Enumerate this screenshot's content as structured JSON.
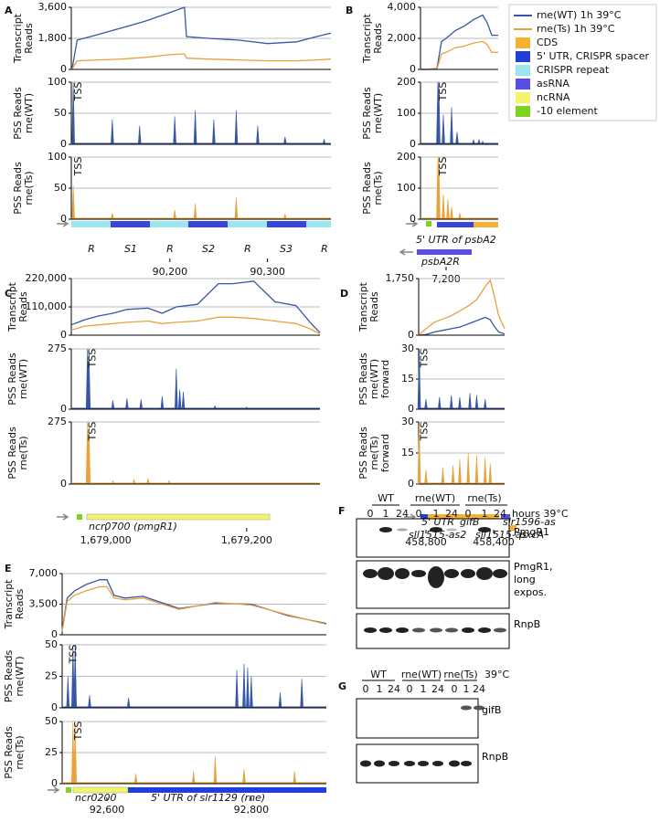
{
  "legend": {
    "items": [
      {
        "label": "rne(WT) 1h 39°C",
        "color": "#3656a8",
        "kind": "line"
      },
      {
        "label": "rne(Ts) 1h 39°C",
        "color": "#e9a13b",
        "kind": "line"
      },
      {
        "label": "CDS",
        "color": "#f3b331",
        "kind": "box"
      },
      {
        "label": "5' UTR, CRISPR spacer",
        "color": "#1f3fd8",
        "kind": "box"
      },
      {
        "label": "CRISPR repeat",
        "color": "#9ee6ef",
        "kind": "box"
      },
      {
        "label": "asRNA",
        "color": "#5a4de6",
        "kind": "box"
      },
      {
        "label": "ncRNA",
        "color": "#f4f46a",
        "kind": "box"
      },
      {
        "label": "-10 element",
        "color": "#7ed321",
        "kind": "box"
      }
    ]
  },
  "panels": [
    {
      "label": "A",
      "xlim": [
        90099,
        90365
      ],
      "xticks": [
        {
          "value": 90200,
          "label": "90,200"
        },
        {
          "value": 90300,
          "label": "90,300"
        }
      ],
      "track_labels": [
        "R",
        "S1",
        "R",
        "S2",
        "R",
        "S3",
        "R"
      ],
      "transcript": {
        "ylabel": [
          "Transcript",
          "Reads"
        ],
        "ylim": [
          0,
          3600
        ],
        "yticks": [
          0,
          {
            "value": 1800,
            "label": "1,800"
          },
          {
            "value": 3600,
            "label": "3,600"
          }
        ],
        "x": [
          90100,
          90105,
          90125,
          90150,
          90175,
          90200,
          90215,
          90217,
          90240,
          90270,
          90300,
          90330,
          90350,
          90365
        ],
        "series": [
          {
            "color": "#3656a8",
            "values": [
              100,
              1700,
              2000,
              2400,
              2800,
              3300,
              3600,
              1900,
              1800,
              1700,
              1500,
              1600,
              1900,
              2100
            ]
          },
          {
            "color": "#e9a13b",
            "values": [
              50,
              500,
              550,
              600,
              700,
              850,
              900,
              650,
              600,
              550,
              500,
              500,
              550,
              600
            ]
          }
        ]
      },
      "pss_wt": {
        "ylabel": [
          "PSS Reads",
          "rne(WT)"
        ],
        "ylim": [
          0,
          100
        ],
        "yticks": [
          0,
          50,
          100
        ],
        "annotation": "TSS",
        "color": "#3656a8",
        "x": [
          90101,
          90141,
          90169,
          90205,
          90226,
          90245,
          90268,
          90290,
          90318,
          90358
        ],
        "values": [
          100,
          40,
          30,
          45,
          55,
          40,
          55,
          30,
          12,
          8
        ]
      },
      "pss_ts": {
        "ylabel": [
          "PSS Reads",
          "rne(Ts)"
        ],
        "ylim": [
          0,
          100
        ],
        "yticks": [
          0,
          50,
          100
        ],
        "annotation": "TSS",
        "color": "#e9a13b",
        "x": [
          90101,
          90141,
          90205,
          90226,
          90268,
          90318
        ],
        "values": [
          55,
          10,
          15,
          25,
          35,
          8
        ]
      }
    },
    {
      "label": "B",
      "xlim": [
        7172,
        7257
      ],
      "xticks": [
        {
          "value": 7200,
          "label": "7,200"
        }
      ],
      "track_labels": [
        "5' UTR of psbA2",
        "psbA2R"
      ],
      "transcript": {
        "ylabel": [
          "Transcript",
          "Reads"
        ],
        "ylim": [
          0,
          4000
        ],
        "yticks": [
          0,
          {
            "value": 2000,
            "label": "2,000"
          },
          {
            "value": 4000,
            "label": "4,000"
          }
        ],
        "x": [
          7172,
          7180,
          7190,
          7195,
          7200,
          7210,
          7220,
          7230,
          7240,
          7245,
          7250,
          7257
        ],
        "series": [
          {
            "color": "#3656a8",
            "values": [
              0,
              0,
              50,
              1800,
              2000,
              2500,
              2800,
              3200,
              3500,
              3000,
              2200,
              2200
            ]
          },
          {
            "color": "#e9a13b",
            "values": [
              0,
              0,
              20,
              1000,
              1100,
              1400,
              1500,
              1700,
              1800,
              1600,
              1100,
              1100
            ]
          }
        ]
      },
      "pss_wt": {
        "ylabel": [
          "PSS Reads",
          "rne(WT)"
        ],
        "ylim": [
          0,
          200
        ],
        "yticks": [
          0,
          100,
          200
        ],
        "annotation": "TSS",
        "color": "#3656a8",
        "x": [
          7191,
          7192,
          7197,
          7206,
          7212,
          7230,
          7236,
          7240
        ],
        "values": [
          200,
          200,
          95,
          120,
          40,
          15,
          15,
          10
        ]
      },
      "pss_ts": {
        "ylabel": [
          "PSS Reads",
          "rne(Ts)"
        ],
        "ylim": [
          0,
          200
        ],
        "yticks": [
          0,
          100,
          200
        ],
        "annotation": "TSS",
        "color": "#e9a13b",
        "x": [
          7191,
          7192,
          7197,
          7202,
          7206,
          7215
        ],
        "values": [
          200,
          200,
          80,
          65,
          40,
          20
        ]
      }
    },
    {
      "label": "C",
      "xlim": [
        1678951,
        1679304
      ],
      "xticks": [
        {
          "value": 1679000,
          "label": "1,679,000"
        },
        {
          "value": 1679200,
          "label": "1,679,200"
        }
      ],
      "track_labels": [
        "ncr0700 (pmgR1)"
      ],
      "transcript": {
        "ylabel": [
          "Transcript",
          "Reads"
        ],
        "ylim": [
          0,
          220000
        ],
        "yticks": [
          0,
          {
            "value": 110000,
            "label": "110,000"
          },
          {
            "value": 220000,
            "label": "220,000"
          }
        ],
        "x": [
          1678951,
          1678970,
          1678990,
          1679010,
          1679030,
          1679060,
          1679080,
          1679100,
          1679130,
          1679160,
          1679180,
          1679210,
          1679240,
          1679270,
          1679290,
          1679304
        ],
        "series": [
          {
            "color": "#3656a8",
            "values": [
              40000,
              60000,
              75000,
              85000,
              100000,
              105000,
              85000,
              110000,
              120000,
              200000,
              200000,
              210000,
              130000,
              115000,
              50000,
              10000
            ]
          },
          {
            "color": "#e9a13b",
            "values": [
              20000,
              35000,
              40000,
              45000,
              50000,
              55000,
              45000,
              50000,
              55000,
              70000,
              70000,
              65000,
              55000,
              45000,
              25000,
              5000
            ]
          }
        ]
      },
      "pss_wt": {
        "ylabel": [
          "PSS Reads",
          "rne(WT)"
        ],
        "ylim": [
          0,
          275
        ],
        "yticks": [
          0,
          275
        ],
        "annotation": "TSS",
        "color": "#3656a8",
        "x": [
          1678974,
          1678976,
          1679010,
          1679030,
          1679050,
          1679080,
          1679100,
          1679105,
          1679110,
          1679155,
          1679200
        ],
        "values": [
          275,
          275,
          40,
          50,
          45,
          60,
          185,
          90,
          80,
          15,
          10
        ]
      },
      "pss_ts": {
        "ylabel": [
          "PSS Reads",
          "rne(Ts)"
        ],
        "ylim": [
          0,
          275
        ],
        "yticks": [
          0,
          275
        ],
        "annotation": "TSS",
        "color": "#e9a13b",
        "x": [
          1678974,
          1678976,
          1679010,
          1679040,
          1679060,
          1679090
        ],
        "values": [
          275,
          275,
          15,
          20,
          25,
          15
        ]
      }
    },
    {
      "label": "D",
      "xlim": [
        458843,
        458335
      ],
      "xticks": [
        {
          "value": 458800,
          "label": "458,800"
        },
        {
          "value": 458400,
          "label": "458,400"
        }
      ],
      "track_labels": [
        "5' UTR",
        "gifB",
        "slr1596-as",
        "sll1515-as2",
        "sll1515-as",
        "pxcA"
      ],
      "transcript": {
        "ylabel": [
          "Transcript",
          "Reads"
        ],
        "ylim": [
          0,
          1750
        ],
        "yticks": [
          0,
          {
            "value": 1750,
            "label": "1,750"
          }
        ],
        "x": [
          458843,
          458800,
          458750,
          458700,
          458650,
          458600,
          458550,
          458500,
          458450,
          458420,
          458400,
          458370,
          458335
        ],
        "series": [
          {
            "color": "#3656a8",
            "values": [
              0,
              20,
              100,
              150,
              200,
              250,
              350,
              450,
              550,
              480,
              300,
              100,
              40
            ]
          },
          {
            "color": "#e9a13b",
            "values": [
              0,
              200,
              400,
              500,
              600,
              750,
              900,
              1100,
              1500,
              1700,
              1300,
              600,
              200
            ]
          }
        ]
      },
      "pss_wt": {
        "ylabel": [
          "PSS Reads",
          "rne(WT)",
          "forward"
        ],
        "ylim": [
          0,
          30
        ],
        "yticks": [
          0,
          15,
          30
        ],
        "annotation": "TSS",
        "color": "#3656a8",
        "x": [
          458840,
          458800,
          458720,
          458650,
          458600,
          458540,
          458500,
          458450
        ],
        "values": [
          30,
          5,
          6,
          7,
          6,
          8,
          7,
          5
        ]
      },
      "pss_ts": {
        "ylabel": [
          "PSS Reads",
          "rne(Ts)",
          "forward"
        ],
        "ylim": [
          0,
          30
        ],
        "yticks": [
          0,
          15,
          30
        ],
        "annotation": "TSS",
        "color": "#e9a13b",
        "x": [
          458840,
          458800,
          458700,
          458640,
          458600,
          458550,
          458500,
          458450,
          458420
        ],
        "values": [
          30,
          7,
          8,
          9,
          12,
          15,
          14,
          13,
          10
        ]
      }
    },
    {
      "label": "E",
      "xlim": [
        92538,
        92904
      ],
      "xticks": [
        {
          "value": 92600,
          "label": "92,600"
        },
        {
          "value": 92800,
          "label": "92,800"
        }
      ],
      "track_labels": [
        "ncr0200",
        "5' UTR of slr1129 (rne)"
      ],
      "transcript": {
        "ylabel": [
          "Transcript",
          "Reads"
        ],
        "ylim": [
          0,
          7000
        ],
        "yticks": [
          0,
          {
            "value": 3500,
            "label": "3,500"
          },
          {
            "value": 7000,
            "label": "7,000"
          }
        ],
        "x": [
          92538,
          92545,
          92555,
          92570,
          92590,
          92600,
          92610,
          92625,
          92650,
          92700,
          92750,
          92800,
          92850,
          92904
        ],
        "series": [
          {
            "color": "#3656a8",
            "values": [
              500,
              4200,
              5000,
              5700,
              6300,
              6300,
              4500,
              4200,
              4400,
              3000,
              3600,
              3500,
              2200,
              1300
            ]
          },
          {
            "color": "#e9a13b",
            "values": [
              400,
              3800,
              4500,
              5000,
              5500,
              5500,
              4200,
              4000,
              4200,
              2900,
              3700,
              3400,
              2300,
              1200
            ]
          }
        ]
      },
      "pss_wt": {
        "ylabel": [
          "PSS Reads",
          "rne(WT)"
        ],
        "ylim": [
          0,
          50
        ],
        "yticks": [
          0,
          25,
          50
        ],
        "annotation": "TSS",
        "color": "#3656a8",
        "x": [
          92546,
          92553,
          92556,
          92576,
          92630,
          92780,
          92790,
          92795,
          92800,
          92840,
          92870
        ],
        "values": [
          25,
          48,
          50,
          10,
          8,
          30,
          35,
          32,
          25,
          12,
          23
        ]
      },
      "pss_ts": {
        "ylabel": [
          "PSS Reads",
          "rne(Ts)"
        ],
        "ylim": [
          0,
          50
        ],
        "yticks": [
          0,
          25,
          50
        ],
        "annotation": "TSS",
        "color": "#e9a13b",
        "x": [
          92553,
          92556,
          92640,
          92720,
          92750,
          92790,
          92860
        ],
        "values": [
          50,
          50,
          8,
          10,
          22,
          12,
          10
        ]
      }
    }
  ],
  "blots": [
    {
      "label": "F",
      "headers": [
        "WT",
        "rne(WT)",
        "rne(Ts)"
      ],
      "lanes": [
        "0",
        "1",
        "24",
        "0",
        "1",
        "24",
        "0",
        "1",
        "24"
      ],
      "unit": "hours 39°C",
      "rows": [
        "PmgR1",
        "PmgR1, long expos.",
        "RnpB"
      ]
    },
    {
      "label": "G",
      "headers": [
        "WT",
        "rne(WT)",
        "rne(Ts)"
      ],
      "lanes": [
        "0",
        "1",
        "24",
        "0",
        "1",
        "24",
        "0",
        "1",
        "24"
      ],
      "unit": "39°C",
      "rows": [
        "gifB",
        "RnpB"
      ]
    }
  ]
}
